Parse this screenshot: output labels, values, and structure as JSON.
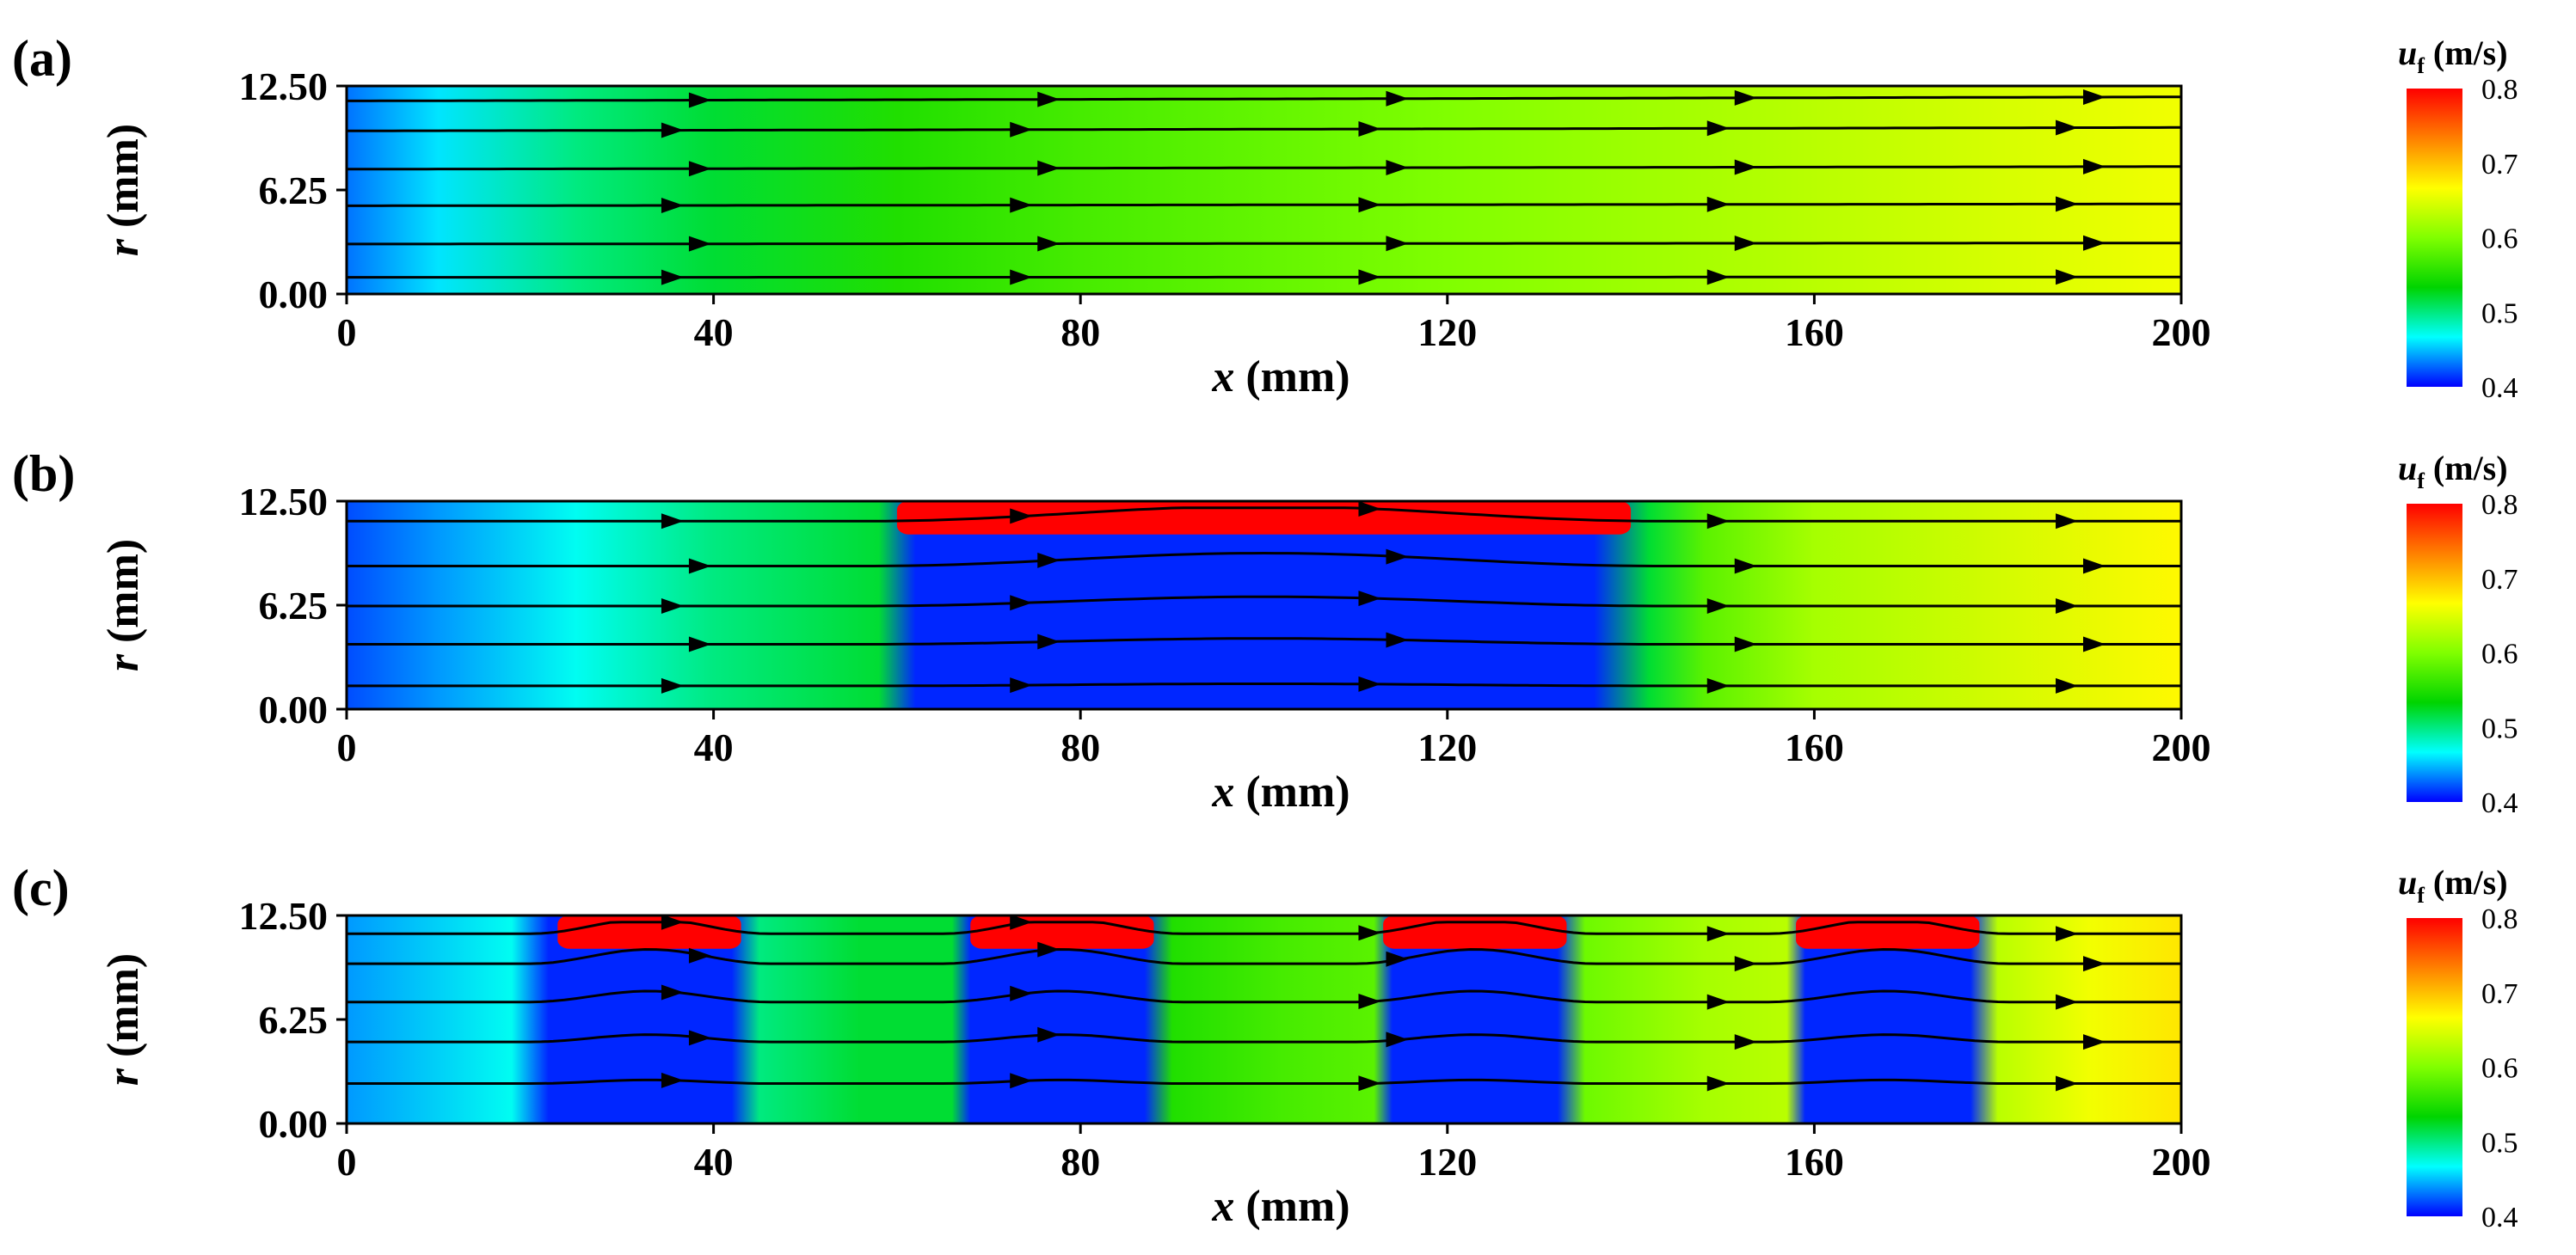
{
  "figure": {
    "colorbar": {
      "title_symbol": "u",
      "title_subscript": "f",
      "title_unit": "(m/s)",
      "ticks": [
        "0.8",
        "0.7",
        "0.6",
        "0.5",
        "0.4"
      ],
      "range": [
        0.4,
        0.8
      ],
      "colormap": [
        "#0000ff",
        "#00ffff",
        "#00d400",
        "#80ff00",
        "#ffff00",
        "#ff8000",
        "#ff0000"
      ]
    }
  },
  "chart_data": [
    {
      "type": "heatmap",
      "panel_label": "(a)",
      "xlabel_symbol": "x",
      "xlabel_unit": "(mm)",
      "ylabel_symbol": "r",
      "ylabel_unit": "(mm)",
      "x_ticks": [
        "0",
        "40",
        "80",
        "120",
        "160",
        "200"
      ],
      "y_ticks": [
        "0.00",
        "6.25",
        "12.50"
      ],
      "xlim": [
        0,
        200
      ],
      "ylim": [
        0,
        12.5
      ],
      "field_profile_x": [
        0,
        10,
        25,
        40,
        60,
        80,
        120,
        160,
        200
      ],
      "field_profile_u": [
        0.43,
        0.46,
        0.5,
        0.52,
        0.55,
        0.57,
        0.6,
        0.63,
        0.66
      ],
      "high_velocity_regions": [],
      "streamline_r0": [
        1.0,
        3.0,
        5.3,
        7.5,
        9.8,
        11.6
      ]
    },
    {
      "type": "heatmap",
      "panel_label": "(b)",
      "xlabel_symbol": "x",
      "xlabel_unit": "(mm)",
      "ylabel_symbol": "r",
      "ylabel_unit": "(mm)",
      "x_ticks": [
        "0",
        "40",
        "80",
        "120",
        "160",
        "200"
      ],
      "y_ticks": [
        "0.00",
        "6.25",
        "12.50"
      ],
      "xlim": [
        0,
        200
      ],
      "ylim": [
        0,
        12.5
      ],
      "field_profile_x": [
        0,
        10,
        25,
        40,
        58,
        62,
        136,
        142,
        148,
        160,
        200
      ],
      "field_profile_u": [
        0.42,
        0.44,
        0.47,
        0.5,
        0.52,
        0.41,
        0.41,
        0.52,
        0.58,
        0.62,
        0.67
      ],
      "high_velocity_regions": [
        {
          "x0": 60,
          "x1": 140,
          "r0": 10.5,
          "r1": 12.5,
          "u": 0.82
        }
      ],
      "streamline_r0": [
        1.4,
        3.9,
        6.2,
        8.6,
        11.3
      ]
    },
    {
      "type": "heatmap",
      "panel_label": "(c)",
      "xlabel_symbol": "x",
      "xlabel_unit": "(mm)",
      "ylabel_symbol": "r",
      "ylabel_unit": "(mm)",
      "x_ticks": [
        "0",
        "40",
        "80",
        "120",
        "160",
        "200"
      ],
      "y_ticks": [
        "0.00",
        "6.25",
        "12.50"
      ],
      "xlim": [
        0,
        200
      ],
      "ylim": [
        0,
        12.5
      ],
      "field_profile_x": [
        0,
        18,
        22,
        42,
        45,
        56,
        66,
        68,
        87,
        90,
        102,
        112,
        114,
        132,
        135,
        148,
        157,
        159,
        177,
        180,
        190,
        200
      ],
      "field_profile_u": [
        0.44,
        0.47,
        0.41,
        0.41,
        0.5,
        0.52,
        0.52,
        0.41,
        0.41,
        0.55,
        0.57,
        0.58,
        0.41,
        0.41,
        0.59,
        0.62,
        0.63,
        0.41,
        0.41,
        0.63,
        0.66,
        0.68
      ],
      "high_velocity_regions": [
        {
          "x0": 23,
          "x1": 43,
          "r0": 10.5,
          "r1": 12.5,
          "u": 0.82
        },
        {
          "x0": 68,
          "x1": 88,
          "r0": 10.5,
          "r1": 12.5,
          "u": 0.82
        },
        {
          "x0": 113,
          "x1": 133,
          "r0": 10.5,
          "r1": 12.5,
          "u": 0.82
        },
        {
          "x0": 158,
          "x1": 178,
          "r0": 10.5,
          "r1": 12.5,
          "u": 0.82
        }
      ],
      "streamline_r0": [
        2.4,
        4.9,
        7.3,
        9.6,
        11.4
      ]
    }
  ]
}
